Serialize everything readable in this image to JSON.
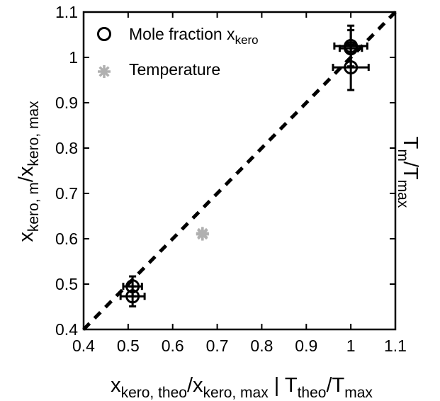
{
  "chart_data": {
    "type": "scatter",
    "xlim": [
      0.4,
      1.1
    ],
    "ylim": [
      0.4,
      1.1
    ],
    "xticks": [
      "0.4",
      "0.5",
      "0.6",
      "0.7",
      "0.8",
      "0.9",
      "1",
      "1.1"
    ],
    "yticks": [
      "0.4",
      "0.5",
      "0.6",
      "0.7",
      "0.8",
      "0.9",
      "1",
      "1.1"
    ],
    "xlabel": {
      "parts": [
        {
          "t": "x",
          "sub": false
        },
        {
          "t": "kero, theo",
          "sub": true
        },
        {
          "t": "/x",
          "sub": false
        },
        {
          "t": "kero, max",
          "sub": true
        },
        {
          "t": " | T",
          "sub": false
        },
        {
          "t": "theo",
          "sub": true
        },
        {
          "t": "/T",
          "sub": false
        },
        {
          "t": "max",
          "sub": true
        }
      ]
    },
    "ylabel": {
      "parts": [
        {
          "t": "x",
          "sub": false
        },
        {
          "t": "kero, m",
          "sub": true
        },
        {
          "t": "/x",
          "sub": false
        },
        {
          "t": "kero, max",
          "sub": true
        }
      ]
    },
    "y2label": {
      "parts": [
        {
          "t": "T",
          "sub": false
        },
        {
          "t": "m",
          "sub": true
        },
        {
          "t": "/T",
          "sub": false
        },
        {
          "t": "max",
          "sub": true
        }
      ]
    },
    "grid": false,
    "legend_position": "top-left",
    "reference_line": {
      "style": "dashed",
      "color": "#000000",
      "x": [
        0.4,
        1.1
      ],
      "y": [
        0.4,
        1.1
      ]
    },
    "series": [
      {
        "name": "Mole fraction x",
        "name_sub": "kero",
        "marker": "circle",
        "color": "#000000",
        "points": [
          {
            "x": 0.51,
            "y": 0.495,
            "xerr": 0.021,
            "yerr": 0.022
          },
          {
            "x": 0.51,
            "y": 0.473,
            "xerr": 0.027,
            "yerr": 0.022
          },
          {
            "x": 1.0,
            "y": 1.025,
            "xerr": 0.037,
            "yerr": 0.045
          },
          {
            "x": 1.0,
            "y": 1.02,
            "xerr": 0.025,
            "yerr": 0.04
          },
          {
            "x": 1.0,
            "y": 0.978,
            "xerr": 0.04,
            "yerr": 0.05
          }
        ]
      },
      {
        "name": "Temperature",
        "marker": "asterisk",
        "color": "#b0b0b0",
        "points": [
          {
            "x": 0.667,
            "y": 0.612
          },
          {
            "x": 0.667,
            "y": 0.61
          }
        ]
      }
    ]
  }
}
